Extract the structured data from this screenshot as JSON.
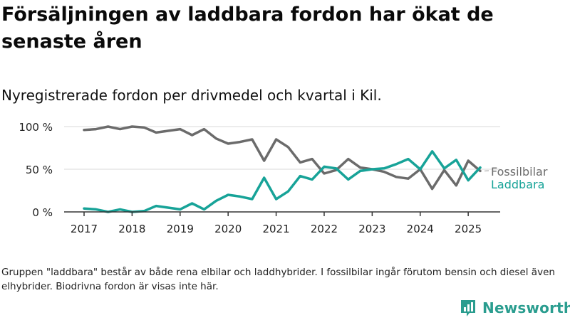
{
  "title": "Försäljningen av laddbara fordon har ökat de senaste åren",
  "subtitle": "Nyregistrerade fordon per drivmedel och kvartal i Kil.",
  "footnote": "Gruppen \"laddbara\" består av både rena elbilar och laddhybrider. I fossilbilar ingår förutom bensin och diesel även elhybrider. Biodrivna fordon är visas inte här.",
  "logo": {
    "text": "Newsworthy",
    "icon": "newsworthy-chart-icon",
    "color": "#2a9d8f"
  },
  "chart_data": {
    "type": "line",
    "ylim": [
      0,
      100
    ],
    "yticks": [
      0,
      50,
      100
    ],
    "ytick_labels": [
      "0 %",
      "50 %",
      "100 %"
    ],
    "xlim": [
      2017.0,
      2025.25
    ],
    "xticks": [
      2017,
      2018,
      2019,
      2020,
      2021,
      2022,
      2023,
      2024,
      2025
    ],
    "xtick_labels": [
      "2017",
      "2018",
      "2019",
      "2020",
      "2021",
      "2022",
      "2023",
      "2024",
      "2025"
    ],
    "grid": true,
    "x": [
      2017.0,
      2017.25,
      2017.5,
      2017.75,
      2018.0,
      2018.25,
      2018.5,
      2018.75,
      2019.0,
      2019.25,
      2019.5,
      2019.75,
      2020.0,
      2020.25,
      2020.5,
      2020.75,
      2021.0,
      2021.25,
      2021.5,
      2021.75,
      2022.0,
      2022.25,
      2022.5,
      2022.75,
      2023.0,
      2023.25,
      2023.5,
      2023.75,
      2024.0,
      2024.25,
      2024.5,
      2024.75,
      2025.0,
      2025.25
    ],
    "series": [
      {
        "name": "Fossilbilar",
        "color": "#6b6b6b",
        "values": [
          96,
          97,
          100,
          97,
          100,
          99,
          93,
          95,
          97,
          90,
          97,
          86,
          80,
          82,
          85,
          60,
          85,
          76,
          58,
          62,
          45,
          49,
          62,
          52,
          50,
          47,
          41,
          39,
          50,
          27,
          49,
          31,
          60,
          48
        ]
      },
      {
        "name": "Laddbara",
        "color": "#17a398",
        "values": [
          4,
          3,
          0,
          3,
          0,
          1,
          7,
          5,
          3,
          10,
          3,
          13,
          20,
          18,
          15,
          40,
          15,
          24,
          42,
          38,
          53,
          51,
          38,
          48,
          50,
          51,
          56,
          62,
          50,
          71,
          51,
          61,
          37,
          52
        ]
      }
    ]
  }
}
